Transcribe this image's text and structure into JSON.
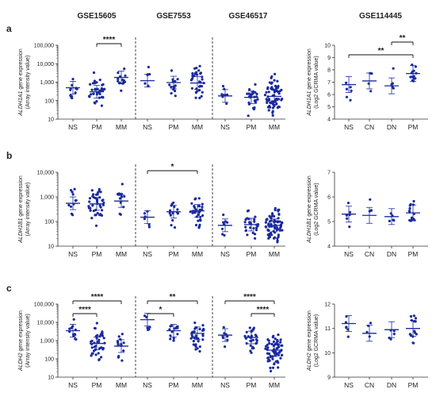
{
  "colors": {
    "points": "#1a2a9c",
    "axis": "#333333",
    "divider": "#333333"
  },
  "chart_data": [
    {
      "type": "scatter",
      "panel": "a",
      "log_scale": true,
      "ylim": [
        10,
        100000
      ],
      "yticks": [
        "10",
        "100",
        "1,000",
        "10,000",
        "100,000"
      ],
      "ylabel_gene": "ALDH1A1",
      "ylabel_rest": " gene expression",
      "ylabel2": "(Array intensity value)",
      "groups": [
        {
          "dataset": "GSE15605",
          "categories": [
            "NS",
            "PM",
            "MM"
          ],
          "medians": [
            500,
            300,
            1800
          ]
        },
        {
          "dataset": "GSE7553",
          "categories": [
            "NS",
            "PM",
            "MM"
          ],
          "medians": [
            1200,
            950,
            900
          ]
        },
        {
          "dataset": "GSE46517",
          "categories": [
            "NS",
            "PM",
            "MM"
          ],
          "medians": [
            180,
            150,
            170
          ]
        }
      ],
      "significance": [
        {
          "group": 0,
          "from": 1,
          "to": 2,
          "label": "****"
        }
      ]
    },
    {
      "type": "scatter",
      "panel": "a2",
      "log_scale": false,
      "ylim": [
        4,
        10
      ],
      "yticks": [
        "4",
        "5",
        "6",
        "7",
        "8",
        "9",
        "10"
      ],
      "ylabel_gene": "ALDH1A1",
      "ylabel_rest": " gene expression",
      "ylabel2": "(Log2 GCRMA value)",
      "groups": [
        {
          "dataset": "GSE114445",
          "categories": [
            "NS",
            "CN",
            "DN",
            "PM"
          ],
          "medians": [
            6.8,
            7.1,
            6.7,
            7.7
          ]
        }
      ],
      "significance": [
        {
          "group": 0,
          "from": 0,
          "to": 3,
          "label": "**"
        },
        {
          "group": 0,
          "from": 2,
          "to": 3,
          "label": "**"
        }
      ]
    },
    {
      "type": "scatter",
      "panel": "b",
      "log_scale": true,
      "ylim": [
        10,
        10000
      ],
      "yticks": [
        "10",
        "100",
        "1,000",
        "10,000"
      ],
      "ylabel_gene": "ALDH1B1",
      "ylabel_rest": " gene expression",
      "ylabel2": "(Array intensity value)",
      "groups": [
        {
          "dataset": "GSE15605",
          "categories": [
            "NS",
            "PM",
            "MM"
          ],
          "medians": [
            550,
            520,
            680
          ]
        },
        {
          "dataset": "GSE7553",
          "categories": [
            "NS",
            "PM",
            "MM"
          ],
          "medians": [
            150,
            250,
            270
          ]
        },
        {
          "dataset": "GSE46517",
          "categories": [
            "NS",
            "PM",
            "MM"
          ],
          "medians": [
            70,
            75,
            70
          ]
        }
      ],
      "significance": [
        {
          "group": 1,
          "from": 0,
          "to": 2,
          "label": "*"
        }
      ]
    },
    {
      "type": "scatter",
      "panel": "b2",
      "log_scale": false,
      "ylim": [
        4,
        7
      ],
      "yticks": [
        "4",
        "5",
        "6",
        "7"
      ],
      "ylabel_gene": "ALDH1B1",
      "ylabel_rest": " gene expression",
      "ylabel2": "(Log2 GCRMA value)",
      "groups": [
        {
          "dataset": "GSE114445",
          "categories": [
            "NS",
            "CN",
            "DN",
            "PM"
          ],
          "medians": [
            5.3,
            5.25,
            5.2,
            5.35
          ]
        }
      ],
      "significance": []
    },
    {
      "type": "scatter",
      "panel": "c",
      "log_scale": true,
      "ylim": [
        10,
        100000
      ],
      "yticks": [
        "10",
        "100",
        "1,000",
        "10,000",
        "100,000"
      ],
      "ylabel_gene": "ALDH2",
      "ylabel_rest": " gene expression",
      "ylabel2": "(Array intensity value)",
      "groups": [
        {
          "dataset": "GSE15605",
          "categories": [
            "NS",
            "PM",
            "MM"
          ],
          "medians": [
            3500,
            700,
            500
          ]
        },
        {
          "dataset": "GSE7553",
          "categories": [
            "NS",
            "PM",
            "MM"
          ],
          "medians": [
            14000,
            3500,
            2500
          ]
        },
        {
          "dataset": "GSE46517",
          "categories": [
            "NS",
            "PM",
            "MM"
          ],
          "medians": [
            2000,
            1500,
            300
          ]
        }
      ],
      "significance": [
        {
          "group": 0,
          "from": 0,
          "to": 1,
          "label": "****"
        },
        {
          "group": 0,
          "from": 0,
          "to": 2,
          "label": "****"
        },
        {
          "group": 1,
          "from": 0,
          "to": 1,
          "label": "*"
        },
        {
          "group": 1,
          "from": 0,
          "to": 2,
          "label": "**"
        },
        {
          "group": 2,
          "from": 1,
          "to": 2,
          "label": "****"
        },
        {
          "group": 2,
          "from": 0,
          "to": 2,
          "label": "****"
        }
      ]
    },
    {
      "type": "scatter",
      "panel": "c2",
      "log_scale": false,
      "ylim": [
        9,
        12
      ],
      "yticks": [
        "9",
        "10",
        "11",
        "12"
      ],
      "ylabel_gene": "ALDH2",
      "ylabel_rest": " gene expression",
      "ylabel2": "(Log2 GCRMA value)",
      "groups": [
        {
          "dataset": "GSE114445",
          "categories": [
            "NS",
            "CN",
            "DN",
            "PM"
          ],
          "medians": [
            11.2,
            10.8,
            10.95,
            11.0
          ]
        }
      ],
      "significance": []
    }
  ]
}
